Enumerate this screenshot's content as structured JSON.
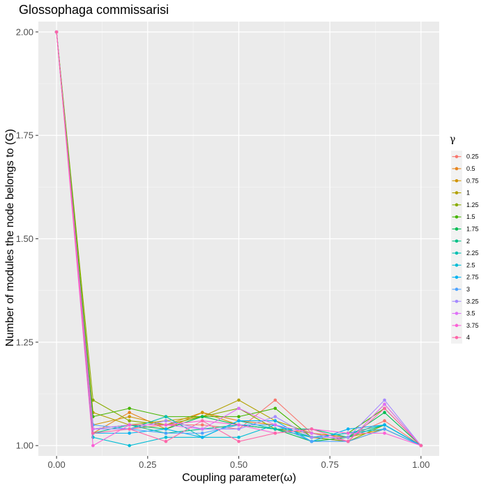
{
  "chart_data": {
    "type": "line",
    "title": "Glossophaga commissarisi",
    "xlabel": "Coupling parameter(ω)",
    "ylabel": "Number of modules the node belongs to (G)",
    "legend_title": "γ",
    "legend_position": "right",
    "grid": true,
    "xlim": [
      -0.05,
      1.05
    ],
    "ylim": [
      0.975,
      2.025
    ],
    "x_ticks": [
      0,
      0.25,
      0.5,
      0.75,
      1
    ],
    "x_tick_labels": [
      "0.00",
      "0.25",
      "0.50",
      "0.75",
      "1.00"
    ],
    "y_ticks": [
      1,
      1.25,
      1.5,
      1.75,
      2
    ],
    "y_tick_labels": [
      "1.00",
      "1.25",
      "1.50",
      "1.75",
      "2.00"
    ],
    "x": [
      0,
      0.1,
      0.2,
      0.3,
      0.4,
      0.5,
      0.6,
      0.7,
      0.8,
      0.9,
      1.0
    ],
    "series": [
      {
        "name": "0.25",
        "color": "#F8766D",
        "values": [
          2,
          1.04,
          1.04,
          1.05,
          1.05,
          1.04,
          1.11,
          1.03,
          1.02,
          1.06,
          1.0
        ]
      },
      {
        "name": "0.5",
        "color": "#E7851E",
        "values": [
          2,
          1.03,
          1.08,
          1.04,
          1.08,
          1.06,
          1.05,
          1.02,
          1.01,
          1.1,
          1.0
        ]
      },
      {
        "name": "0.75",
        "color": "#D09400",
        "values": [
          2,
          1.05,
          1.07,
          1.05,
          1.08,
          1.05,
          1.04,
          1.03,
          1.02,
          1.04,
          1.0
        ]
      },
      {
        "name": "1",
        "color": "#B2A100",
        "values": [
          2,
          1.08,
          1.05,
          1.06,
          1.07,
          1.11,
          1.06,
          1.03,
          1.01,
          1.04,
          1.0
        ]
      },
      {
        "name": "1.25",
        "color": "#89AC00",
        "values": [
          2,
          1.11,
          1.06,
          1.05,
          1.07,
          1.09,
          1.04,
          1.02,
          1.01,
          1.05,
          1.0
        ]
      },
      {
        "name": "1.5",
        "color": "#45B500",
        "values": [
          2,
          1.07,
          1.09,
          1.07,
          1.07,
          1.07,
          1.09,
          1.02,
          1.03,
          1.09,
          1.0
        ]
      },
      {
        "name": "1.75",
        "color": "#00BC51",
        "values": [
          2,
          1.04,
          1.05,
          1.04,
          1.07,
          1.05,
          1.04,
          1.01,
          1.02,
          1.08,
          1.0
        ]
      },
      {
        "name": "2",
        "color": "#00C087",
        "values": [
          2,
          1.03,
          1.05,
          1.03,
          1.04,
          1.05,
          1.04,
          1.04,
          1.02,
          1.05,
          1.0
        ]
      },
      {
        "name": "2.25",
        "color": "#00C0B2",
        "values": [
          2,
          1.04,
          1.04,
          1.07,
          1.02,
          1.06,
          1.04,
          1.02,
          1.03,
          1.05,
          1.0
        ]
      },
      {
        "name": "2.5",
        "color": "#00BCD6",
        "values": [
          2,
          1.02,
          1.0,
          1.02,
          1.02,
          1.02,
          1.05,
          1.02,
          1.03,
          1.04,
          1.0
        ]
      },
      {
        "name": "2.75",
        "color": "#00B3F2",
        "values": [
          2,
          1.03,
          1.03,
          1.04,
          1.02,
          1.06,
          1.06,
          1.01,
          1.04,
          1.05,
          1.0
        ]
      },
      {
        "name": "3",
        "color": "#4DA3FF",
        "values": [
          2,
          1.05,
          1.04,
          1.03,
          1.03,
          1.05,
          1.05,
          1.01,
          1.01,
          1.04,
          1.0
        ]
      },
      {
        "name": "3.25",
        "color": "#A58AFF",
        "values": [
          2,
          1.04,
          1.04,
          1.06,
          1.04,
          1.04,
          1.07,
          1.02,
          1.02,
          1.11,
          1.0
        ]
      },
      {
        "name": "3.5",
        "color": "#DF70F8",
        "values": [
          2,
          1.04,
          1.05,
          1.05,
          1.04,
          1.09,
          1.05,
          1.03,
          1.01,
          1.1,
          1.0
        ]
      },
      {
        "name": "3.75",
        "color": "#FB61D7",
        "values": [
          2,
          1.0,
          1.05,
          1.05,
          1.06,
          1.05,
          1.03,
          1.04,
          1.03,
          1.03,
          1.0
        ]
      },
      {
        "name": "4",
        "color": "#FF66A8",
        "values": [
          2,
          1.03,
          1.04,
          1.01,
          1.06,
          1.01,
          1.03,
          1.04,
          1.01,
          1.09,
          1.0
        ]
      }
    ]
  },
  "style": {
    "panel_bg": "#EBEBEB",
    "grid_major": "#FFFFFF",
    "grid_minor": "#F5F5F5",
    "tick_color": "#333333"
  }
}
